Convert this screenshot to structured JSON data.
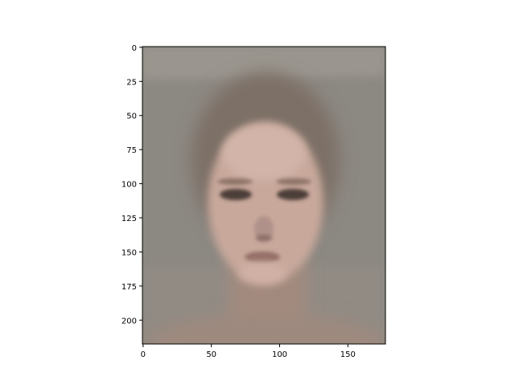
{
  "chart_data": {
    "type": "heatmap",
    "title": "",
    "xlabel": "",
    "ylabel": "",
    "xlim": [
      0,
      177
    ],
    "ylim": [
      218,
      0
    ],
    "x_ticks": [
      0,
      50,
      100,
      150
    ],
    "y_ticks": [
      0,
      25,
      50,
      75,
      100,
      125,
      150,
      175,
      200
    ],
    "image_shape": [
      218,
      178
    ],
    "image_content": "blurred average face portrait on grey background",
    "colors": {
      "background": "#8c8882",
      "skin": "#c9a99c",
      "hair": "#7a6b62",
      "features": "#4a3b36",
      "neck": "#a88d80"
    }
  }
}
